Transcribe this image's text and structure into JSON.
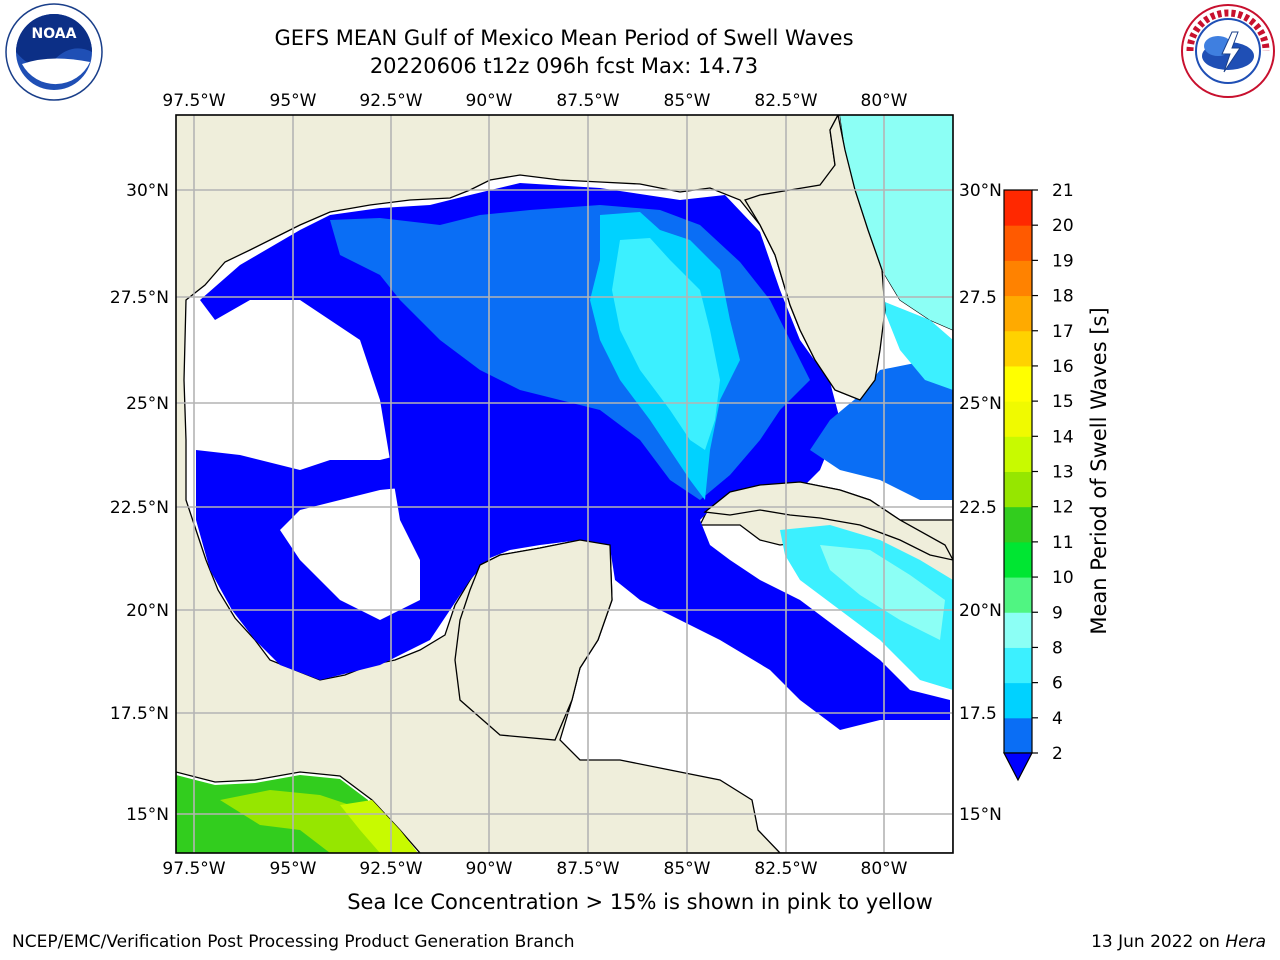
{
  "header": {
    "title_line1": "GEFS MEAN Gulf of Mexico Mean Period of Swell Waves",
    "title_line2": "20220606 t12z 096h fcst   Max: 14.73"
  },
  "logos": {
    "left": {
      "name": "NOAA",
      "label": "NOAA"
    },
    "right": {
      "name": "National Weather Service"
    }
  },
  "map": {
    "region": "Gulf of Mexico",
    "lon_labels": [
      "97.5°W",
      "95°W",
      "92.5°W",
      "90°W",
      "87.5°W",
      "85°W",
      "82.5°W",
      "80°W"
    ],
    "lat_labels_left": [
      "30°N",
      "27.5°N",
      "25°N",
      "22.5°N",
      "20°N",
      "17.5°N",
      "15°N"
    ],
    "lat_labels_right": [
      "30°N",
      "27.5",
      "25°N",
      "22.5",
      "20°N",
      "17.5",
      "15°N"
    ],
    "colors": {
      "land": "#efeedb",
      "no_data": "#ffffff",
      "grid": "#b4b4b4"
    }
  },
  "colorbar": {
    "label": "Mean Period of Swell Waves [s]",
    "ticks": [
      "2",
      "4",
      "6",
      "8",
      "9",
      "10",
      "11",
      "12",
      "13",
      "14",
      "15",
      "16",
      "17",
      "18",
      "19",
      "20",
      "21"
    ],
    "colors": [
      "#0a6ef5",
      "#00d2ff",
      "#3cf0ff",
      "#8cfff5",
      "#50f582",
      "#00e632",
      "#32cd1e",
      "#96e600",
      "#c8fa00",
      "#f0fa00",
      "#ffff00",
      "#ffd200",
      "#ffaa00",
      "#ff8200",
      "#ff5a00",
      "#ff2800",
      "#ff0000"
    ],
    "under_color": "#0000ff"
  },
  "footer": {
    "note": "Sea Ice Concentration > 15% is shown in pink to yellow",
    "credit_left": "NCEP/EMC/Verification Post Processing Product Generation Branch",
    "credit_right_date": "13 Jun 2022 on ",
    "credit_right_host": "Hera"
  }
}
